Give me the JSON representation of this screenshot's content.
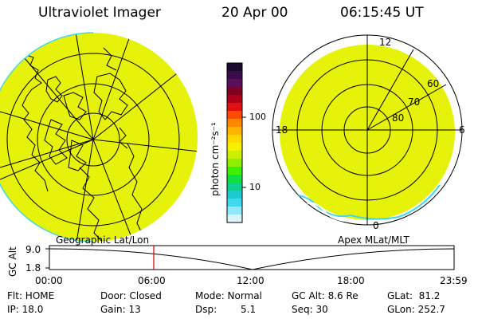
{
  "header": {
    "title": "Ultraviolet Imager",
    "date": "20 Apr 00",
    "time": "06:15:45 UT"
  },
  "colorbar": {
    "unit_label": "photon cm⁻²s⁻¹",
    "ticks": [
      "100",
      "10"
    ],
    "colors": [
      "#1a0a2e",
      "#3a0a4a",
      "#5a0f5a",
      "#800020",
      "#b00018",
      "#e01010",
      "#ff4a00",
      "#ff8a00",
      "#ffb400",
      "#ffd800",
      "#f4f000",
      "#c8f000",
      "#8cf000",
      "#3cf000",
      "#10e040",
      "#10d090",
      "#20c8d0",
      "#40d8f0",
      "#90e8f8",
      "#d8f4fa"
    ]
  },
  "left_map": {
    "label": "Geographic Lat/Lon",
    "fill": "#e6f20a"
  },
  "right_map": {
    "label": "Apex MLat/MLT",
    "fill": "#e6f20a",
    "ring_labels": [
      "60",
      "70",
      "80"
    ],
    "mlt_labels": {
      "top": "12",
      "left": "18",
      "right": "6",
      "bottom": "0"
    }
  },
  "alt_plot": {
    "ylabel": "GC Alt",
    "yticks": [
      "9.0",
      "1.8"
    ],
    "xticks": [
      "00:00",
      "06:00",
      "12:00",
      "18:00",
      "23:59"
    ],
    "cursor_color": "#cc0000"
  },
  "status": {
    "flt": "Flt: HOME",
    "ip": "IP: 18.0",
    "door": "Door: Closed",
    "gain": "Gain: 13",
    "mode": "Mode: Normal",
    "dsp_label": "Dsp:",
    "dsp_value": "5.1",
    "gcalt": "GC Alt: 8.6 Re",
    "seq": "Seq: 30",
    "glat": "GLat:  81.2",
    "glon": "GLon: 252.7"
  }
}
